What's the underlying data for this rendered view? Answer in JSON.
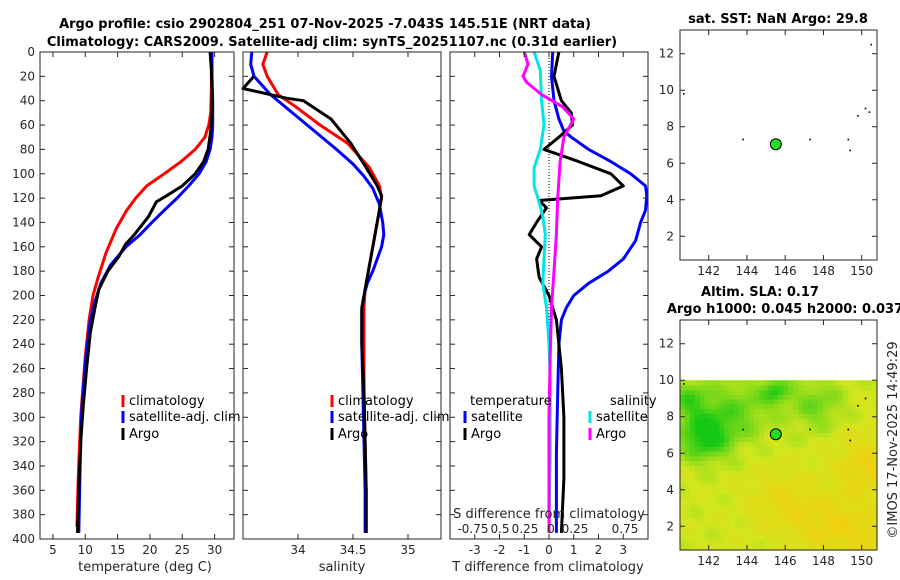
{
  "title": {
    "line1": "Argo profile: csio 2902804_251 07-Nov-2025 -7.043S 145.51E (NRT data)",
    "line2": "Climatology: CARS2009. Satellite-adj clim: synTS_20251107.nc (0.31d earlier)"
  },
  "side_label": "©IMOS 17-Nov-2025 14:49:29",
  "colors": {
    "climatology": "#ff0000",
    "satellite": "#0000ff",
    "argo": "#000000",
    "sat_salinity": "#00e5e5",
    "argo_salinity": "#ff00ff",
    "marker": "#22dd22"
  },
  "legends": {
    "temp": [
      "climatology",
      "satellite-adj. clim",
      "Argo"
    ],
    "sal": [
      "climatology",
      "satellite-adj. clim",
      "Argo"
    ],
    "diff_left_title": "temperature",
    "diff_right_title": "salinity",
    "diff_left": [
      "satellite",
      "Argo"
    ],
    "diff_right": [
      "satellite",
      "Argo"
    ]
  },
  "chart_data": [
    {
      "id": "temperature",
      "type": "line",
      "xlabel": "temperature (deg C)",
      "ylabel": "",
      "xlim": [
        3,
        33
      ],
      "ylim": [
        0,
        400
      ],
      "xticks": [
        5,
        10,
        15,
        20,
        25,
        30
      ],
      "yticks": [
        0,
        20,
        40,
        60,
        80,
        100,
        120,
        140,
        160,
        180,
        200,
        220,
        240,
        260,
        280,
        300,
        320,
        340,
        360,
        380,
        400
      ],
      "series": [
        {
          "name": "climatology",
          "color": "#ff0000",
          "x": [
            29.5,
            29.5,
            29.4,
            29.1,
            28.5,
            27,
            24.8,
            22.2,
            19.5,
            17.8,
            16.4,
            14.8,
            13.2,
            12.0,
            11.2,
            10.6,
            10.0,
            9.3,
            8.9,
            8.7
          ],
          "y": [
            0,
            30,
            50,
            60,
            70,
            80,
            90,
            100,
            110,
            120,
            130,
            145,
            165,
            185,
            200,
            220,
            250,
            300,
            350,
            390
          ]
        },
        {
          "name": "satellite-adj. clim",
          "color": "#0000ff",
          "x": [
            29.6,
            29.6,
            29.7,
            29.7,
            29.6,
            29.3,
            28.7,
            27.6,
            26,
            24.2,
            22.2,
            20.3,
            18.5,
            16.3,
            13.9,
            12.4,
            11.5,
            10.8,
            10.1,
            9.5,
            9.2,
            9.0
          ],
          "y": [
            0,
            20,
            40,
            60,
            70,
            80,
            90,
            100,
            110,
            120,
            130,
            140,
            150,
            160,
            175,
            190,
            205,
            220,
            250,
            290,
            340,
            395
          ]
        },
        {
          "name": "Argo",
          "color": "#000000",
          "x": [
            29.3,
            29.5,
            29.6,
            29.6,
            29.4,
            29,
            28.3,
            27,
            25,
            22.6,
            21,
            19.8,
            17.6,
            16.2,
            15.2,
            13.5,
            12.1,
            11.5,
            10.8,
            10.2,
            9.7,
            9.3,
            9.0,
            8.8
          ],
          "y": [
            0,
            15,
            30,
            50,
            65,
            80,
            90,
            100,
            110,
            118,
            123,
            135,
            150,
            158,
            168,
            180,
            195,
            210,
            230,
            260,
            290,
            320,
            360,
            395
          ]
        }
      ]
    },
    {
      "id": "salinity",
      "type": "line",
      "xlabel": "salinity",
      "ylabel": "",
      "xlim": [
        33.5,
        35.3
      ],
      "ylim": [
        0,
        400
      ],
      "xticks": [
        34,
        34.5,
        35
      ],
      "yticks": [],
      "series": [
        {
          "name": "climatology",
          "color": "#ff0000",
          "x": [
            33.72,
            33.68,
            33.72,
            33.82,
            33.98,
            34.2,
            34.45,
            34.65,
            34.74,
            34.76,
            34.72,
            34.68,
            34.64,
            34.61,
            34.6,
            34.6,
            34.6,
            34.61,
            34.62,
            34.62
          ],
          "y": [
            0,
            10,
            20,
            35,
            45,
            60,
            75,
            95,
            110,
            120,
            140,
            160,
            180,
            195,
            210,
            240,
            280,
            320,
            360,
            395
          ]
        },
        {
          "name": "satellite-adj. clim",
          "color": "#0000ff",
          "x": [
            33.58,
            33.57,
            33.6,
            33.75,
            33.95,
            34.15,
            34.35,
            34.5,
            34.6,
            34.68,
            34.74,
            34.77,
            34.78,
            34.76,
            34.72,
            34.68,
            34.63,
            34.6,
            34.58,
            34.58,
            34.59,
            34.6,
            34.61,
            34.61
          ],
          "y": [
            0,
            10,
            20,
            35,
            50,
            65,
            80,
            92,
            102,
            112,
            125,
            140,
            150,
            160,
            170,
            180,
            190,
            200,
            212,
            240,
            280,
            320,
            360,
            395
          ]
        },
        {
          "name": "Argo",
          "color": "#000000",
          "x": [
            33.6,
            33.5,
            33.9,
            34.05,
            34.3,
            34.48,
            34.62,
            34.72,
            34.76,
            34.74,
            34.7,
            34.66,
            34.62,
            34.6,
            34.58,
            34.58,
            34.6,
            34.61,
            34.62,
            34.62
          ],
          "y": [
            20,
            30,
            38,
            40,
            55,
            75,
            95,
            110,
            118,
            130,
            150,
            170,
            190,
            200,
            210,
            240,
            280,
            320,
            360,
            395
          ]
        }
      ]
    },
    {
      "id": "difference",
      "type": "line",
      "xlabel": "T difference from climatology",
      "top_label": "S difference from climatology",
      "secondary_xticks": [
        "-0.75",
        "0.5",
        "0.25",
        "0",
        "0.25",
        "0.75"
      ],
      "xlim": [
        -4,
        4
      ],
      "ylim": [
        0,
        400
      ],
      "xticks": [
        -3,
        -2,
        -1,
        0,
        1,
        2,
        3
      ],
      "yticks": [],
      "series": [
        {
          "name": "temperature satellite",
          "color": "#0000ff",
          "x": [
            0.15,
            0.1,
            0.2,
            0.4,
            0.6,
            0.9,
            1.6,
            2.5,
            3.3,
            3.9,
            3.95,
            3.9,
            3.7,
            3.5,
            3.0,
            2.4,
            1.6,
            1.0,
            0.7,
            0.5,
            0.4,
            0.35,
            0.3,
            0.3
          ],
          "y": [
            0,
            20,
            40,
            55,
            65,
            70,
            80,
            90,
            100,
            110,
            118,
            130,
            140,
            155,
            170,
            180,
            190,
            200,
            210,
            220,
            240,
            280,
            330,
            395
          ]
        },
        {
          "name": "temperature Argo",
          "color": "#000000",
          "x": [
            0.4,
            0.2,
            0.5,
            0.9,
            0.95,
            0.4,
            -0.2,
            1.2,
            2.5,
            3.0,
            2.1,
            -0.4,
            -0.1,
            -0.5,
            -0.8,
            -0.3,
            -0.5,
            -0.4,
            0,
            0.3,
            0.5,
            0.6,
            0.6,
            0.5
          ],
          "y": [
            0,
            20,
            40,
            50,
            60,
            70,
            80,
            90,
            100,
            110,
            118,
            122,
            128,
            140,
            150,
            160,
            170,
            185,
            200,
            220,
            260,
            300,
            350,
            395
          ]
        },
        {
          "name": "salinity satellite",
          "color": "#00e5e5",
          "x": [
            -0.6,
            -0.35,
            -0.3,
            -0.2,
            -0.35,
            -0.6,
            -0.6,
            -0.45,
            -0.25,
            -0.15,
            -0.2,
            -0.25,
            -0.1,
            0,
            0.05,
            0.05,
            0.05,
            0.02,
            0.0
          ],
          "y": [
            0,
            15,
            40,
            60,
            80,
            95,
            110,
            120,
            135,
            150,
            170,
            190,
            210,
            240,
            270,
            300,
            330,
            360,
            395
          ]
        },
        {
          "name": "salinity Argo",
          "color": "#ff00ff",
          "x": [
            -1.0,
            -0.85,
            -1.05,
            -0.9,
            -0.3,
            0.55,
            1.0,
            0.6,
            0.45,
            0.35,
            0.3,
            0.2,
            0.1,
            0.05,
            0.0,
            0.0,
            0.0
          ],
          "y": [
            0,
            10,
            20,
            25,
            35,
            45,
            55,
            70,
            90,
            120,
            150,
            180,
            210,
            250,
            300,
            350,
            395
          ]
        }
      ]
    },
    {
      "id": "sst_map",
      "type": "scatter",
      "title": "sat. SST: NaN Argo: 29.8",
      "xlim": [
        140.5,
        150.8
      ],
      "ylim": [
        0.7,
        13.3
      ],
      "xticks": [
        142,
        144,
        146,
        148,
        150
      ],
      "yticks": [
        2,
        4,
        6,
        8,
        10,
        12
      ],
      "argo_position": {
        "lon": 145.51,
        "lat": 7.04
      },
      "dots": [
        [
          140.7,
          9.8
        ],
        [
          143.8,
          7.3
        ],
        [
          147.3,
          7.3
        ],
        [
          149.3,
          7.3
        ],
        [
          149.4,
          6.7
        ],
        [
          149.8,
          8.6
        ],
        [
          150.2,
          9.0
        ],
        [
          150.4,
          8.8
        ],
        [
          150.5,
          12.5
        ]
      ]
    },
    {
      "id": "sla_map",
      "type": "heatmap",
      "title_line1": "Altim. SLA: 0.17",
      "title_line2": "Argo h1000: 0.045 h2000: 0.037",
      "xlim": [
        140.5,
        150.8
      ],
      "ylim": [
        0.7,
        13.3
      ],
      "xticks": [
        142,
        144,
        146,
        148,
        150
      ],
      "yticks": [
        2,
        4,
        6,
        8,
        10,
        12
      ],
      "data_extent_lat_max": 10,
      "argo_position": {
        "lon": 145.51,
        "lat": 7.04
      },
      "dots": [
        [
          140.7,
          9.8
        ],
        [
          143.8,
          7.3
        ],
        [
          147.3,
          7.3
        ],
        [
          149.3,
          7.3
        ],
        [
          149.4,
          6.7
        ],
        [
          149.8,
          8.6
        ],
        [
          150.2,
          9.0
        ]
      ]
    }
  ]
}
